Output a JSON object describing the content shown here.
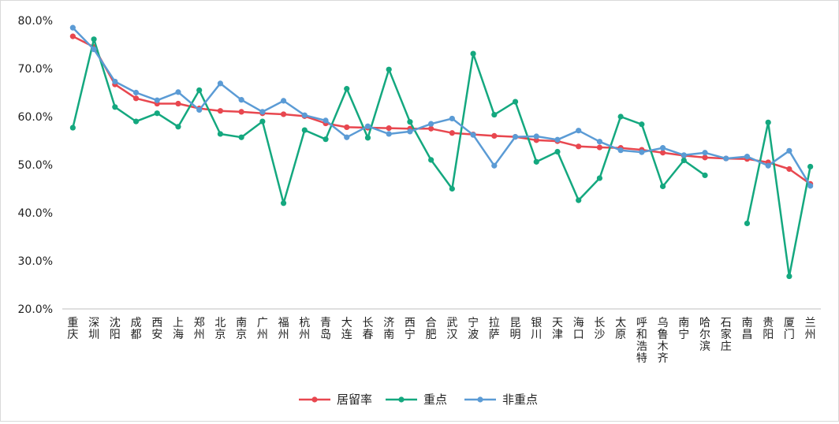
{
  "chart_data": {
    "type": "line",
    "title": "",
    "xlabel": "",
    "ylabel": "",
    "ylim": [
      0.2,
      0.8
    ],
    "yticks": [
      "20.0%",
      "30.0%",
      "40.0%",
      "50.0%",
      "60.0%",
      "70.0%",
      "80.0%"
    ],
    "grid": false,
    "legend_position": "bottom",
    "categories": [
      "重庆",
      "深圳",
      "沈阳",
      "成都",
      "西安",
      "上海",
      "郑州",
      "北京",
      "南京",
      "广州",
      "福州",
      "杭州",
      "青岛",
      "大连",
      "长春",
      "济南",
      "西宁",
      "合肥",
      "武汉",
      "宁波",
      "拉萨",
      "昆明",
      "银川",
      "天津",
      "海口",
      "长沙",
      "太原",
      "呼和浩特",
      "乌鲁木齐",
      "南宁",
      "哈尔滨",
      "石家庄",
      "南昌",
      "贵阳",
      "厦门",
      "兰州"
    ],
    "series": [
      {
        "name": "居留率",
        "color": "#e8474f",
        "values": [
          0.767,
          0.745,
          0.667,
          0.638,
          0.627,
          0.627,
          0.617,
          0.612,
          0.61,
          0.607,
          0.605,
          0.601,
          0.586,
          0.578,
          0.577,
          0.576,
          0.575,
          0.575,
          0.566,
          0.563,
          0.56,
          0.558,
          0.551,
          0.549,
          0.538,
          0.536,
          0.535,
          0.531,
          0.525,
          0.519,
          0.515,
          0.513,
          0.512,
          0.505,
          0.491,
          0.46
        ]
      },
      {
        "name": "重点",
        "color": "#14a87f",
        "values": [
          0.577,
          0.761,
          0.62,
          0.59,
          0.607,
          0.579,
          0.655,
          0.564,
          0.557,
          0.59,
          0.42,
          0.572,
          0.553,
          0.658,
          0.556,
          0.698,
          0.589,
          0.51,
          0.45,
          0.731,
          0.604,
          0.631,
          0.506,
          0.527,
          0.426,
          0.472,
          0.6,
          0.584,
          0.455,
          0.509,
          0.478,
          null,
          0.378,
          0.588,
          0.268,
          0.496
        ]
      },
      {
        "name": "非重点",
        "color": "#5b9bd5",
        "values": [
          0.785,
          0.74,
          0.673,
          0.65,
          0.634,
          0.651,
          0.614,
          0.669,
          0.635,
          0.61,
          0.633,
          0.603,
          0.592,
          0.557,
          0.58,
          0.564,
          0.569,
          0.585,
          0.596,
          0.562,
          0.498,
          0.558,
          0.559,
          0.552,
          0.571,
          0.548,
          0.53,
          0.526,
          0.535,
          0.52,
          0.525,
          0.513,
          0.517,
          0.498,
          0.529,
          0.456
        ]
      }
    ]
  }
}
